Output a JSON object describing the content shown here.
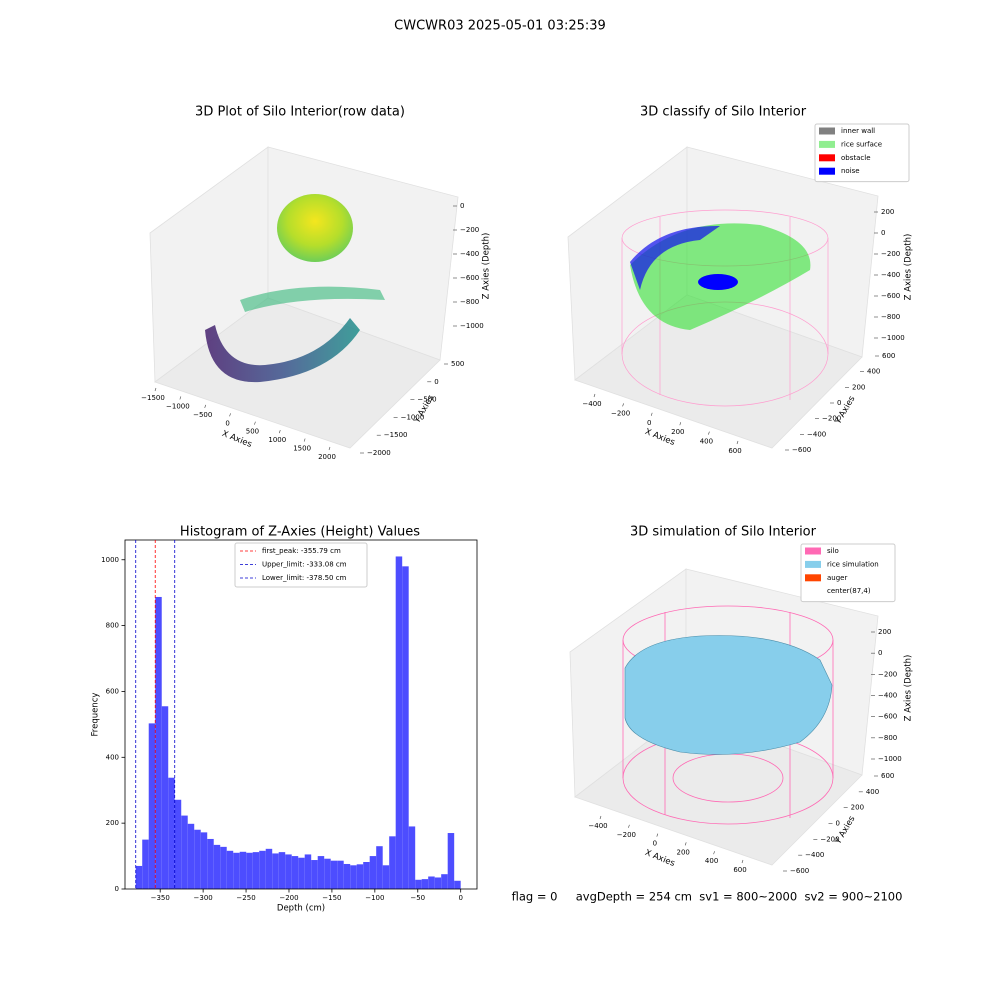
{
  "title": "CWCWR03 2025-05-01 03:25:39",
  "status_text": "flag = 0     avgDepth = 254 cm  sv1 = 800~2000  sv2 = 900~2100",
  "chart_data": [
    {
      "type": "scatter3d",
      "title": "3D Plot of Silo Interior(row data)",
      "xlabel": "X Axies",
      "ylabel": "Y Axies",
      "zlabel": "Z Axies (Depth)",
      "xlim": [
        -1500,
        2000
      ],
      "ylim": [
        -2000,
        500
      ],
      "zlim": [
        -1000,
        0
      ],
      "xticks": [
        {
          "value": -1500,
          "label": "−1500"
        },
        {
          "value": -1000,
          "label": "−1000"
        },
        {
          "value": -500,
          "label": "−500"
        },
        0,
        500,
        1000,
        1500,
        2000
      ],
      "yticks": [
        {
          "value": -2000,
          "label": "−2000"
        },
        {
          "value": -1500,
          "label": "−1500"
        },
        {
          "value": -1000,
          "label": "−1000"
        },
        {
          "value": -500,
          "label": "−500"
        },
        0,
        500
      ],
      "zticks": [
        {
          "value": -1000,
          "label": "−1000"
        },
        {
          "value": -800,
          "label": "−800"
        },
        {
          "value": -600,
          "label": "−600"
        },
        {
          "value": -400,
          "label": "−400"
        },
        {
          "value": -200,
          "label": "−200"
        },
        0
      ]
    },
    {
      "type": "scatter3d",
      "title": "3D classify of Silo Interior",
      "xlabel": "X Axies",
      "ylabel": "Y Axies",
      "zlabel": "Z Axies (Depth)",
      "xlim": [
        -400,
        600
      ],
      "ylim": [
        -600,
        600
      ],
      "zlim": [
        -1000,
        200
      ],
      "xticks": [
        {
          "value": -400,
          "label": "−400"
        },
        {
          "value": -200,
          "label": "−200"
        },
        0,
        200,
        400,
        600
      ],
      "yticks": [
        {
          "value": -600,
          "label": "−600"
        },
        {
          "value": -400,
          "label": "−400"
        },
        {
          "value": -200,
          "label": "−200"
        },
        0,
        200,
        400,
        600
      ],
      "zticks": [
        {
          "value": -1000,
          "label": "−1000"
        },
        {
          "value": -800,
          "label": "−800"
        },
        {
          "value": -600,
          "label": "−600"
        },
        {
          "value": -400,
          "label": "−400"
        },
        {
          "value": -200,
          "label": "−200"
        },
        0,
        200
      ],
      "legend": [
        {
          "name": "inner wall",
          "color": "#808080"
        },
        {
          "name": "rice surface",
          "color": "#90ee90"
        },
        {
          "name": "obstacle",
          "color": "#ff0000"
        },
        {
          "name": "noise",
          "color": "#0000ff"
        }
      ]
    },
    {
      "type": "histogram",
      "title": "Histogram of Z-Axies (Height) Values",
      "xlabel": "Depth (cm)",
      "ylabel": "Frequency",
      "color": "#4d4dff",
      "xlim": [
        -391,
        19
      ],
      "ylim": [
        0,
        1060
      ],
      "xticks": [
        {
          "value": -350,
          "label": "−350"
        },
        {
          "value": -300,
          "label": "−300"
        },
        {
          "value": -250,
          "label": "−250"
        },
        {
          "value": -200,
          "label": "−200"
        },
        {
          "value": -150,
          "label": "−150"
        },
        {
          "value": -100,
          "label": "−100"
        },
        {
          "value": -50,
          "label": "−50"
        },
        0
      ],
      "yticks": [
        0,
        200,
        400,
        600,
        800,
        1000
      ],
      "bins": [
        -378.5,
        -370.93,
        -363.36,
        -355.79,
        -348.22,
        -340.65,
        -333.08,
        -325.51,
        -317.94,
        -310.37,
        -302.8,
        -295.23,
        -287.66,
        -280.09,
        -272.52,
        -264.95,
        -257.38,
        -249.81,
        -242.24,
        -234.67,
        -227.1,
        -219.53,
        -211.96,
        -204.39,
        -196.82,
        -189.25,
        -181.68,
        -174.11,
        -166.54,
        -158.97,
        -151.4,
        -143.83,
        -136.26,
        -128.69,
        -121.12,
        -113.55,
        -105.98,
        -98.41,
        -90.84,
        -83.27,
        -75.7,
        -68.13,
        -60.56,
        -52.99,
        -45.42,
        -37.85,
        -30.28,
        -22.71,
        -15.14,
        -7.57,
        0
      ],
      "counts": [
        70,
        150,
        503,
        887,
        555,
        338,
        271,
        223,
        198,
        180,
        172,
        152,
        134,
        128,
        116,
        110,
        113,
        110,
        112,
        116,
        122,
        108,
        112,
        105,
        100,
        95,
        105,
        88,
        100,
        92,
        86,
        86,
        76,
        72,
        75,
        82,
        100,
        130,
        72,
        160,
        1010,
        980,
        190,
        28,
        30,
        38,
        35,
        45,
        170,
        25
      ],
      "vlines": [
        {
          "name": "first_peak: -355.79 cm",
          "value": -355.79,
          "color": "#ff0000"
        },
        {
          "name": "Upper_limit: -333.08 cm",
          "value": -333.08,
          "color": "#0000cc"
        },
        {
          "name": "Lower_limit: -378.50 cm",
          "value": -378.5,
          "color": "#0000cc"
        }
      ]
    },
    {
      "type": "surface3d",
      "title": "3D simulation of Silo Interior",
      "xlabel": "X Axies",
      "ylabel": "Y Axies",
      "zlabel": "Z Axies (Depth)",
      "xlim": [
        -400,
        600
      ],
      "ylim": [
        -600,
        600
      ],
      "zlim": [
        -1000,
        200
      ],
      "xticks": [
        {
          "value": -400,
          "label": "−400"
        },
        {
          "value": -200,
          "label": "−200"
        },
        0,
        200,
        400,
        600
      ],
      "yticks": [
        {
          "value": -600,
          "label": "−600"
        },
        {
          "value": -400,
          "label": "−400"
        },
        {
          "value": -200,
          "label": "−200"
        },
        0,
        200,
        400,
        600
      ],
      "zticks": [
        {
          "value": -1000,
          "label": "−1000"
        },
        {
          "value": -800,
          "label": "−800"
        },
        {
          "value": -600,
          "label": "−600"
        },
        {
          "value": -400,
          "label": "−400"
        },
        {
          "value": -200,
          "label": "−200"
        },
        0,
        200
      ],
      "legend": [
        {
          "name": "silo",
          "color": "#ff69b4"
        },
        {
          "name": "rice simulation",
          "color": "#87ceeb"
        },
        {
          "name": "auger",
          "color": "#ff4500"
        },
        {
          "name": "center(87,4)",
          "color": "#ffffff"
        }
      ]
    }
  ]
}
